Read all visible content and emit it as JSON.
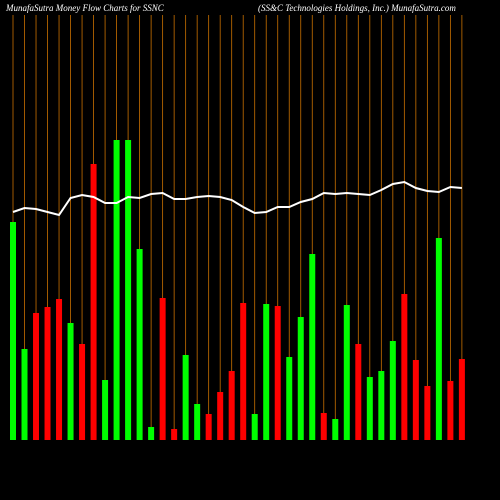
{
  "chart_data": {
    "type": "bar",
    "title": "MunafaSutra  Money Flow  Charts for SSNC",
    "subtitle": "(SS&C Technologies Holdings, Inc.) MunafaSutra.com",
    "categories": [
      null,
      null,
      null,
      null,
      null,
      null,
      null,
      null,
      null,
      null,
      null,
      null,
      null,
      null,
      null,
      null,
      null,
      null,
      null,
      null,
      null,
      null,
      null,
      null,
      null,
      null,
      null,
      null,
      null,
      null,
      null,
      null,
      null,
      null,
      null,
      null,
      null,
      null,
      null,
      null
    ],
    "values": [
      218,
      91,
      127,
      133,
      141,
      117,
      96,
      276,
      60,
      300,
      300,
      191,
      13,
      142,
      11,
      85,
      36,
      26,
      48,
      69,
      137,
      26,
      136,
      134,
      83,
      123,
      186,
      27,
      21,
      135,
      96,
      63,
      69,
      99,
      146,
      80,
      54,
      202,
      59,
      81
    ],
    "colors": [
      "#00ff00",
      "#00ff00",
      "#ff0000",
      "#ff0000",
      "#ff0000",
      "#00ff00",
      "#ff0000",
      "#ff0000",
      "#00ff00",
      "#00ff00",
      "#00ff00",
      "#00ff00",
      "#00ff00",
      "#ff0000",
      "#ff0000",
      "#00ff00",
      "#00ff00",
      "#ff0000",
      "#ff0000",
      "#ff0000",
      "#ff0000",
      "#00ff00",
      "#00ff00",
      "#ff0000",
      "#00ff00",
      "#00ff00",
      "#00ff00",
      "#ff0000",
      "#00ff00",
      "#00ff00",
      "#ff0000",
      "#00ff00",
      "#00ff00",
      "#00ff00",
      "#ff0000",
      "#ff0000",
      "#ff0000",
      "#00ff00",
      "#ff0000",
      "#ff0000"
    ],
    "line": {
      "color": "#ffffff",
      "values": [
        228,
        232,
        231,
        228,
        225,
        242,
        245,
        243,
        237,
        237,
        243,
        242,
        246,
        247,
        241,
        241,
        243,
        244,
        243,
        240,
        233,
        227,
        228,
        233,
        233,
        238,
        241,
        247,
        246,
        247,
        246,
        245,
        250,
        256,
        258,
        252,
        249,
        248,
        253,
        252
      ]
    },
    "grid_color": "#c87000",
    "ylim": [
      0,
      320
    ]
  }
}
